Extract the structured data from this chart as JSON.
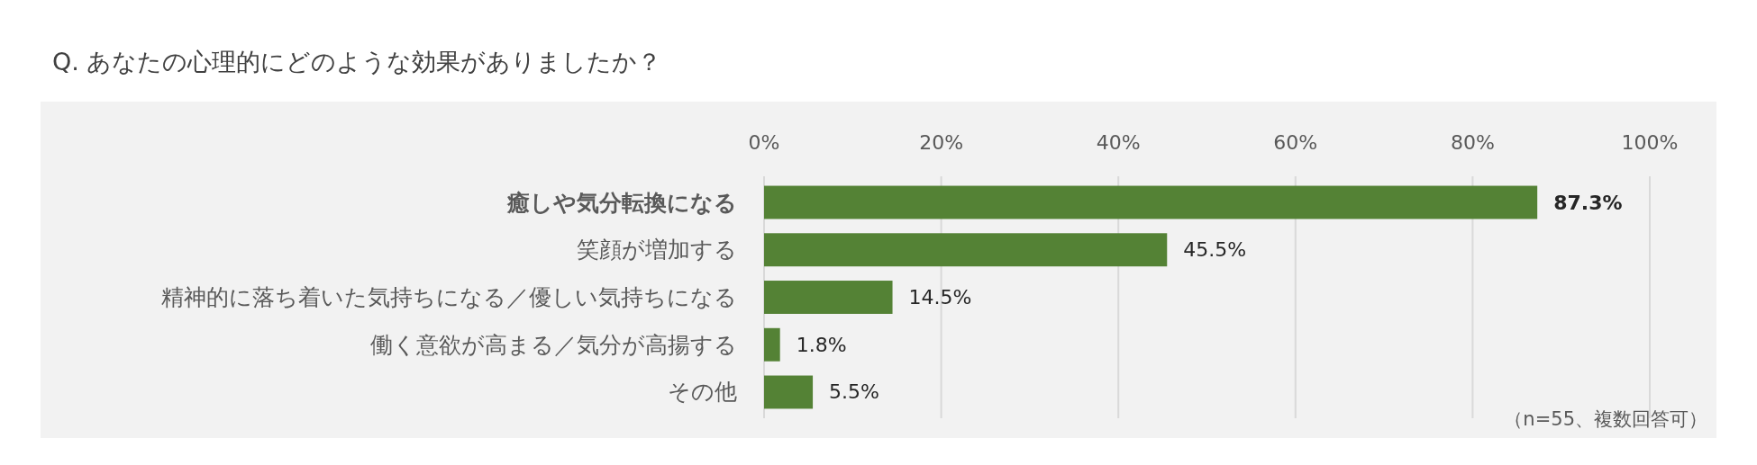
{
  "chart_data": {
    "type": "bar",
    "orientation": "horizontal",
    "title": "Q. あなたの心理的にどのような効果がありましたか？",
    "categories": [
      "癒しや気分転換になる",
      "笑顔が増加する",
      "精神的に落ち着いた気持ちになる／優しい気持ちになる",
      "働く意欲が高まる／気分が高揚する",
      "その他"
    ],
    "values": [
      87.3,
      45.5,
      14.5,
      1.8,
      5.5
    ],
    "value_labels": [
      "87.3%",
      "45.5%",
      "14.5%",
      "1.8%",
      "5.5%"
    ],
    "color": "#548235",
    "xlim": [
      0,
      100
    ],
    "xticks": [
      {
        "value": 0,
        "label": "0%"
      },
      {
        "value": 20,
        "label": "20%"
      },
      {
        "value": 40,
        "label": "40%"
      },
      {
        "value": 60,
        "label": "60%"
      },
      {
        "value": 80,
        "label": "80%"
      },
      {
        "value": 100,
        "label": "100%"
      }
    ],
    "grid": "x",
    "annotations": [
      "（n=55、複数回答可）"
    ]
  }
}
